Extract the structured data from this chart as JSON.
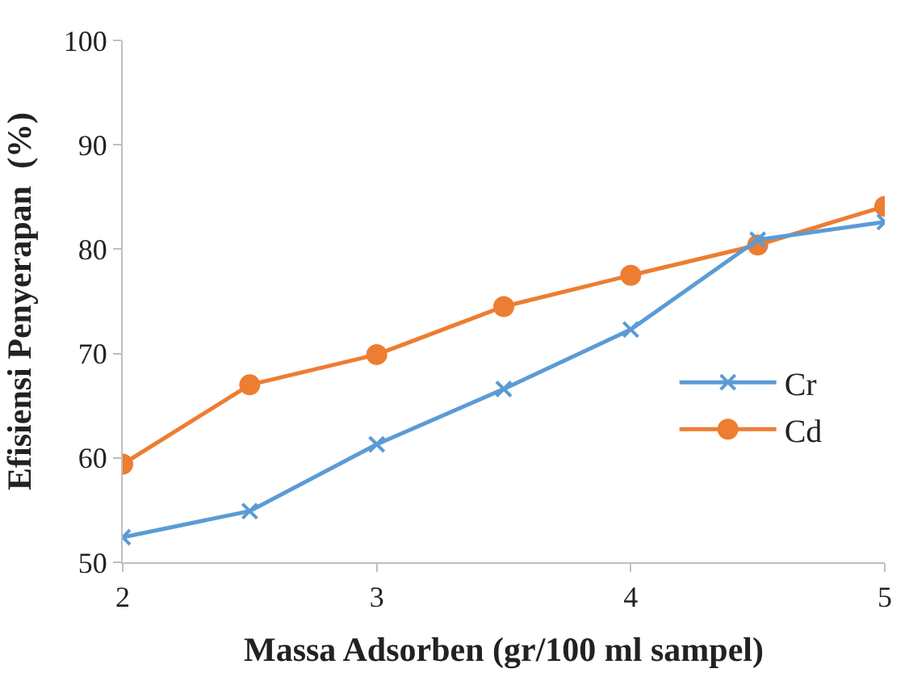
{
  "chart_data": {
    "type": "line",
    "xlabel": "Massa Adsorben (gr/100 ml sampel)",
    "ylabel": "Efisiensi Penyerapan  (%)",
    "x": [
      2,
      2.5,
      3,
      3.5,
      4,
      4.5,
      5
    ],
    "series": [
      {
        "name": "Cr",
        "color": "#5b9bd5",
        "marker": "cross",
        "values": [
          52.4,
          54.9,
          61.3,
          66.6,
          72.3,
          80.9,
          82.6
        ]
      },
      {
        "name": "Cd",
        "color": "#ed7d31",
        "marker": "circle",
        "values": [
          59.4,
          67.0,
          69.9,
          74.5,
          77.5,
          80.4,
          84.1
        ]
      }
    ],
    "xlim": [
      2,
      5
    ],
    "xticks": [
      2,
      3,
      4,
      5
    ],
    "ylim": [
      50,
      100
    ],
    "yticks": [
      50,
      60,
      70,
      80,
      90,
      100
    ],
    "legend": "right"
  }
}
